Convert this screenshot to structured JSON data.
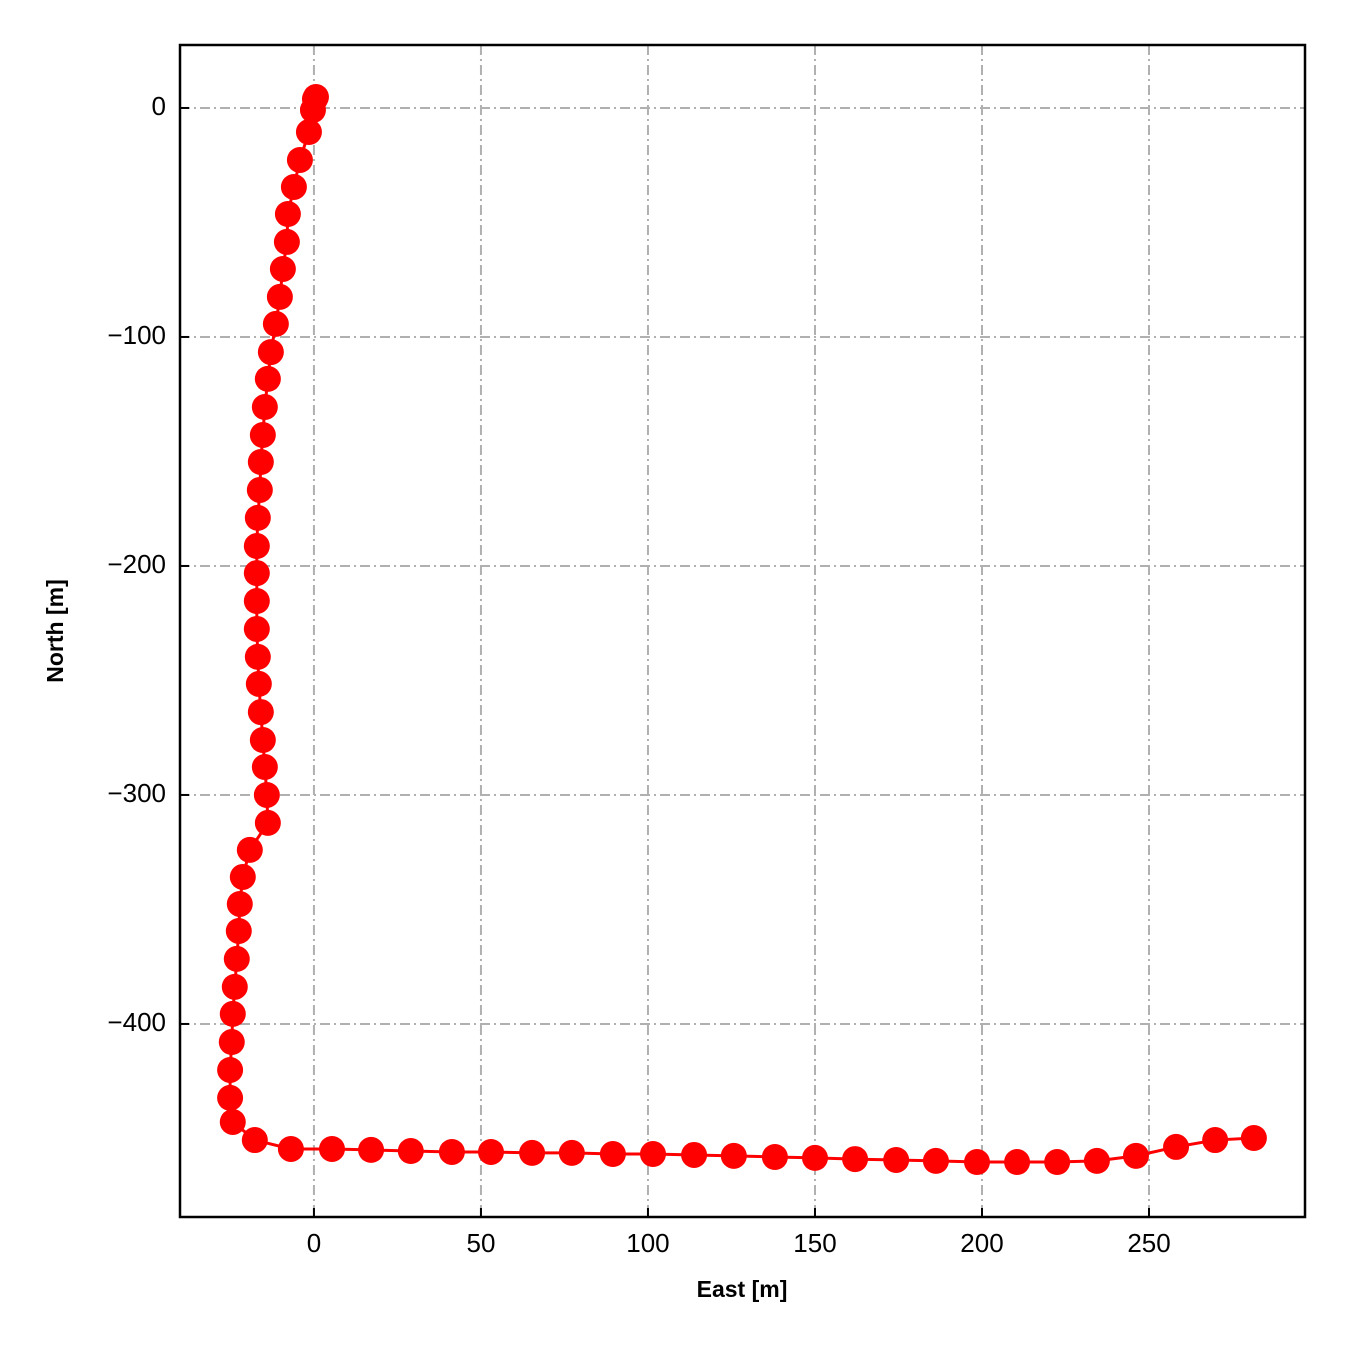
{
  "chart_data": {
    "type": "line",
    "xlabel": "East [m]",
    "ylabel": "North [m]",
    "color": "#ff0000",
    "grid": true,
    "xlim": [
      -40.1,
      296.7
    ],
    "ylim": [
      -484.3,
      27.5
    ],
    "xticks": [
      0,
      50,
      100,
      150,
      200,
      250
    ],
    "yticks": [
      0,
      {
        "value": -100,
        "label": "−100"
      },
      {
        "value": -200,
        "label": "−200"
      },
      {
        "value": -300,
        "label": "−300"
      },
      {
        "value": -400,
        "label": "−400"
      }
    ],
    "x": [
      0.6,
      0.3,
      -0.3,
      -1.5,
      -4.2,
      -6.0,
      -7.8,
      -8.1,
      -9.3,
      -10.2,
      -11.4,
      -12.9,
      -13.8,
      -14.7,
      -15.3,
      -15.9,
      -16.2,
      -16.8,
      -17.1,
      -17.1,
      -17.1,
      -17.1,
      -16.8,
      -16.5,
      -15.9,
      -15.3,
      -14.7,
      -14.1,
      -13.8,
      -19.2,
      -21.3,
      -22.2,
      -22.5,
      -23.1,
      -23.7,
      -24.3,
      -24.6,
      -25.1,
      -25.1,
      -24.3,
      -17.7,
      -6.9,
      5.4,
      17.1,
      29.0,
      41.3,
      53.0,
      65.3,
      77.2,
      89.5,
      101.5,
      113.8,
      125.7,
      138.0,
      150.0,
      162.0,
      174.3,
      186.2,
      198.5,
      210.5,
      222.5,
      234.4,
      246.1,
      258.1,
      269.8,
      281.4
    ],
    "series": [
      {
        "values": [
          4.8,
          3.9,
          -0.9,
          -10.5,
          -22.7,
          -34.5,
          -46.3,
          -58.5,
          -70.3,
          -82.5,
          -94.3,
          -106.6,
          -118.3,
          -130.6,
          -142.8,
          -154.6,
          -166.8,
          -179.0,
          -191.3,
          -203.1,
          -215.3,
          -227.5,
          -239.7,
          -251.5,
          -263.8,
          -276.0,
          -287.8,
          -300.0,
          -312.2,
          -324.0,
          -335.8,
          -347.6,
          -359.4,
          -371.6,
          -383.8,
          -395.6,
          -407.9,
          -420.1,
          -432.3,
          -442.8,
          -450.7,
          -454.6,
          -454.6,
          -455.0,
          -455.5,
          -455.9,
          -455.9,
          -456.3,
          -456.3,
          -456.8,
          -456.8,
          -457.2,
          -457.6,
          -458.1,
          -458.5,
          -459.0,
          -459.4,
          -459.8,
          -460.3,
          -460.3,
          -460.3,
          -459.8,
          -457.6,
          -453.7,
          -450.7,
          -449.8
        ]
      }
    ]
  }
}
